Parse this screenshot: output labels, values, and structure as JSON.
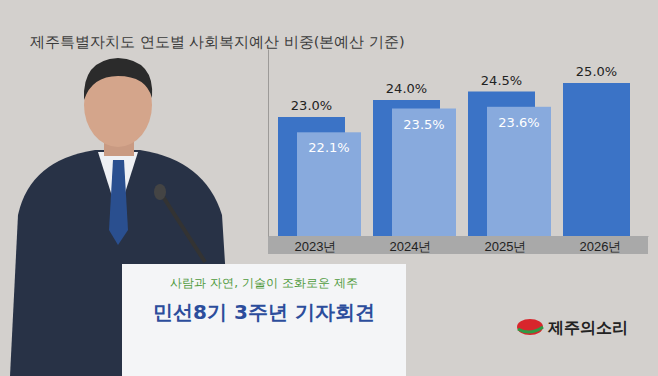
{
  "chart_data": {
    "type": "bar",
    "title": "제주특별자치도 연도별 사회복지예산 비중(본예산 기준)",
    "categories": [
      "2023년",
      "2024년",
      "2025년",
      "2026년"
    ],
    "series": [
      {
        "color": "#3b73c6",
        "values": [
          23.0,
          24.0,
          24.5,
          25.0
        ],
        "value_labels": [
          "23.0%",
          "24.0%",
          "24.5%",
          "25.0%"
        ]
      },
      {
        "color": "#88aadd",
        "values": [
          22.1,
          23.5,
          23.6,
          null
        ],
        "value_labels": [
          "22.1%",
          "23.5%",
          "23.6%",
          null
        ]
      }
    ],
    "ylim": [
      16,
      27
    ],
    "yticks": [],
    "data_labels": true,
    "tick_labels": "x",
    "annotations": [
      "사람과 자연, 기술이 조화로운 제주",
      "민선8기 3주년 기자회견",
      "제주의소리"
    ]
  }
}
